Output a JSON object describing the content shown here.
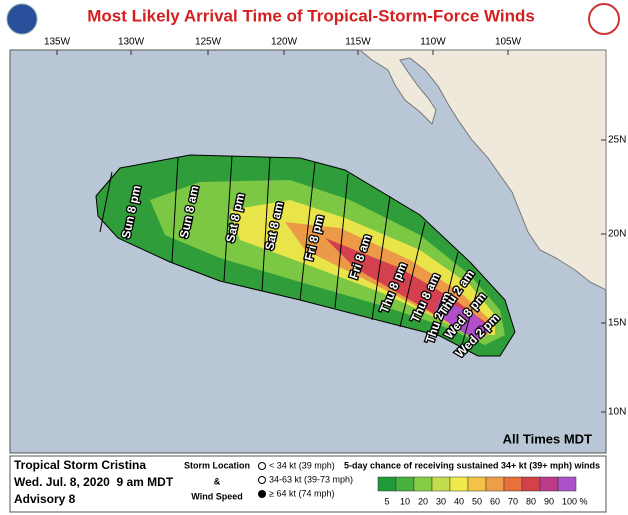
{
  "header": {
    "title": "Most Likely Arrival Time of Tropical-Storm-Force Winds"
  },
  "map": {
    "longitude_labels": [
      "135W",
      "130W",
      "125W",
      "120W",
      "115W",
      "110W",
      "105W"
    ],
    "latitude_labels": [
      "25N",
      "20N",
      "15N",
      "10N"
    ],
    "arrival_labels": [
      "Sun 8 pm",
      "Sun 8 am",
      "Sat 8 pm",
      "Sat 8 am",
      "Fri 8 pm",
      "Fri 8 am",
      "Thu 8 pm",
      "Thu 8 am",
      "Thu 2 pm",
      "Thu 2 am",
      "Wed 8 pm",
      "Wed 2 pm"
    ],
    "note": "All Times MDT"
  },
  "footer": {
    "storm_name": "Tropical Storm Cristina",
    "issued": "Wed. Jul. 8, 2020  9 am MDT",
    "advisory": "Advisory 8",
    "legend_title": "Storm Location",
    "legend_amp": "&",
    "legend_subtitle": "Wind Speed",
    "symbols": [
      "< 34 kt (39 mph)",
      "34-63 kt (39-73 mph)",
      "≥ 64 kt (74 mph)"
    ],
    "scale_title": "5-day chance of receiving sustained 34+ kt (39+ mph) winds",
    "scale_labels": [
      "5",
      "10",
      "20",
      "30",
      "40",
      "50",
      "60",
      "70",
      "80",
      "90",
      "100 %"
    ],
    "scale_colors": [
      "#1f9a3a",
      "#47b23c",
      "#86cc45",
      "#c3de4c",
      "#efea4b",
      "#f3c246",
      "#ef9e48",
      "#e8703b",
      "#d6404b",
      "#bd3b86",
      "#ac52c9"
    ]
  }
}
